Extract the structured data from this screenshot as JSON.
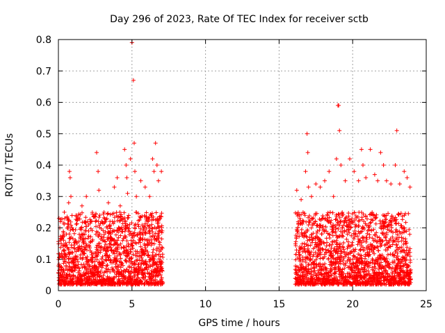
{
  "chart_data": {
    "type": "scatter",
    "title": "Day 296 of 2023, Rate Of TEC Index for receiver sctb",
    "xlabel": "GPS time / hours",
    "ylabel": "ROTI / TECUs",
    "xlim": [
      0,
      25
    ],
    "ylim": [
      0,
      0.8
    ],
    "x_ticks": [
      0,
      5,
      10,
      15,
      20,
      25
    ],
    "x_tick_labels": [
      "0",
      "5",
      "10",
      "15",
      "20",
      "25"
    ],
    "y_ticks": [
      0,
      0.1,
      0.2,
      0.3,
      0.4,
      0.5,
      0.6,
      0.7,
      0.8
    ],
    "y_tick_labels": [
      "0",
      "0.1",
      "0.2",
      "0.3",
      "0.4",
      "0.5",
      "0.6",
      "0.7",
      "0.8"
    ],
    "grid": true,
    "marker": "+",
    "marker_color": "#ff0000",
    "series": [
      {
        "name": "ROTI",
        "x": [
          0.1,
          0.4,
          0.7,
          0.75,
          0.8,
          0.85,
          1.2,
          1.6,
          1.9,
          2.2,
          2.6,
          2.7,
          2.75,
          3.1,
          3.4,
          3.8,
          4.0,
          4.2,
          4.5,
          4.6,
          4.65,
          4.7,
          4.9,
          5.0,
          5.1,
          5.15,
          5.2,
          5.3,
          5.6,
          5.9,
          6.2,
          6.4,
          6.5,
          6.6,
          6.7,
          6.8,
          7.0,
          16.2,
          16.5,
          16.8,
          16.9,
          16.95,
          17.0,
          17.2,
          17.5,
          17.8,
          18.1,
          18.4,
          18.7,
          18.9,
          19.0,
          19.05,
          19.1,
          19.2,
          19.5,
          19.8,
          20.1,
          20.4,
          20.6,
          20.7,
          20.9,
          21.2,
          21.5,
          21.7,
          21.9,
          22.1,
          22.3,
          22.6,
          22.9,
          23.0,
          23.2,
          23.5,
          23.7,
          23.9
        ],
        "y": [
          0.2,
          0.25,
          0.28,
          0.38,
          0.36,
          0.3,
          0.24,
          0.27,
          0.3,
          0.22,
          0.44,
          0.38,
          0.32,
          0.25,
          0.28,
          0.33,
          0.36,
          0.27,
          0.45,
          0.4,
          0.36,
          0.31,
          0.42,
          0.79,
          0.67,
          0.47,
          0.38,
          0.3,
          0.35,
          0.33,
          0.3,
          0.42,
          0.38,
          0.47,
          0.4,
          0.35,
          0.38,
          0.32,
          0.29,
          0.38,
          0.5,
          0.44,
          0.33,
          0.3,
          0.34,
          0.33,
          0.35,
          0.38,
          0.3,
          0.42,
          0.59,
          0.59,
          0.51,
          0.4,
          0.35,
          0.42,
          0.38,
          0.35,
          0.45,
          0.4,
          0.36,
          0.45,
          0.37,
          0.35,
          0.44,
          0.4,
          0.35,
          0.34,
          0.4,
          0.51,
          0.34,
          0.38,
          0.36,
          0.33
        ],
        "baseline_intervals_hours": [
          [
            0,
            7.1
          ],
          [
            16.1,
            23.95
          ]
        ],
        "baseline_range": [
          0.02,
          0.25
        ]
      }
    ]
  }
}
